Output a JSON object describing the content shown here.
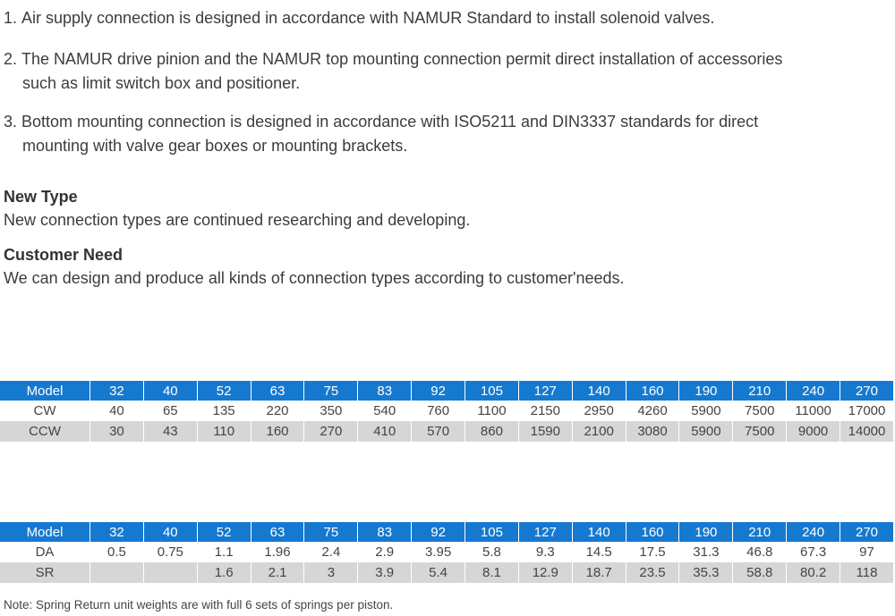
{
  "features": [
    {
      "num": "1.",
      "line1": "Air supply connection is designed in accordance with NAMUR Standard to install solenoid valves.",
      "line2": ""
    },
    {
      "num": "2.",
      "line1": "The NAMUR drive pinion and the NAMUR top mounting connection permit direct installation of accessories",
      "line2": "such as limit switch box and positioner."
    },
    {
      "num": "3.",
      "line1": "Bottom mounting connection is designed in accordance with ISO5211 and DIN3337 standards for direct",
      "line2": "mounting with valve gear boxes or mounting brackets."
    }
  ],
  "new_type": {
    "heading": "New Type",
    "text": "New connection types are continued researching and developing."
  },
  "customer_need": {
    "heading": "Customer Need",
    "text": "We can design and produce all kinds of connection types according  to customer'needs."
  },
  "torque_table": {
    "header": [
      "Model",
      "32",
      "40",
      "52",
      "63",
      "75",
      "83",
      "92",
      "105",
      "127",
      "140",
      "160",
      "190",
      "210",
      "240",
      "270"
    ],
    "rows": [
      [
        "CW",
        "40",
        "65",
        "135",
        "220",
        "350",
        "540",
        "760",
        "1100",
        "2150",
        "2950",
        "4260",
        "5900",
        "7500",
        "11000",
        "17000"
      ],
      [
        "CCW",
        "30",
        "43",
        "110",
        "160",
        "270",
        "410",
        "570",
        "860",
        "1590",
        "2100",
        "3080",
        "5900",
        "7500",
        "9000",
        "14000"
      ]
    ]
  },
  "weight_table": {
    "header": [
      "Model",
      "32",
      "40",
      "52",
      "63",
      "75",
      "83",
      "92",
      "105",
      "127",
      "140",
      "160",
      "190",
      "210",
      "240",
      "270"
    ],
    "rows": [
      [
        "DA",
        "0.5",
        "0.75",
        "1.1",
        "1.96",
        "2.4",
        "2.9",
        "3.95",
        "5.8",
        "9.3",
        "14.5",
        "17.5",
        "31.3",
        "46.8",
        "67.3",
        "97"
      ],
      [
        "SR",
        "",
        "",
        "1.6",
        "2.1",
        "3",
        "3.9",
        "5.4",
        "8.1",
        "12.9",
        "18.7",
        "23.5",
        "35.3",
        "58.8",
        "80.2",
        "118"
      ]
    ]
  },
  "note": "Note: Spring Return unit weights are with full 6 sets of springs per piston.",
  "colors": {
    "header_bg": "#1579d0",
    "alt_row_bg": "#d6d6d6"
  }
}
